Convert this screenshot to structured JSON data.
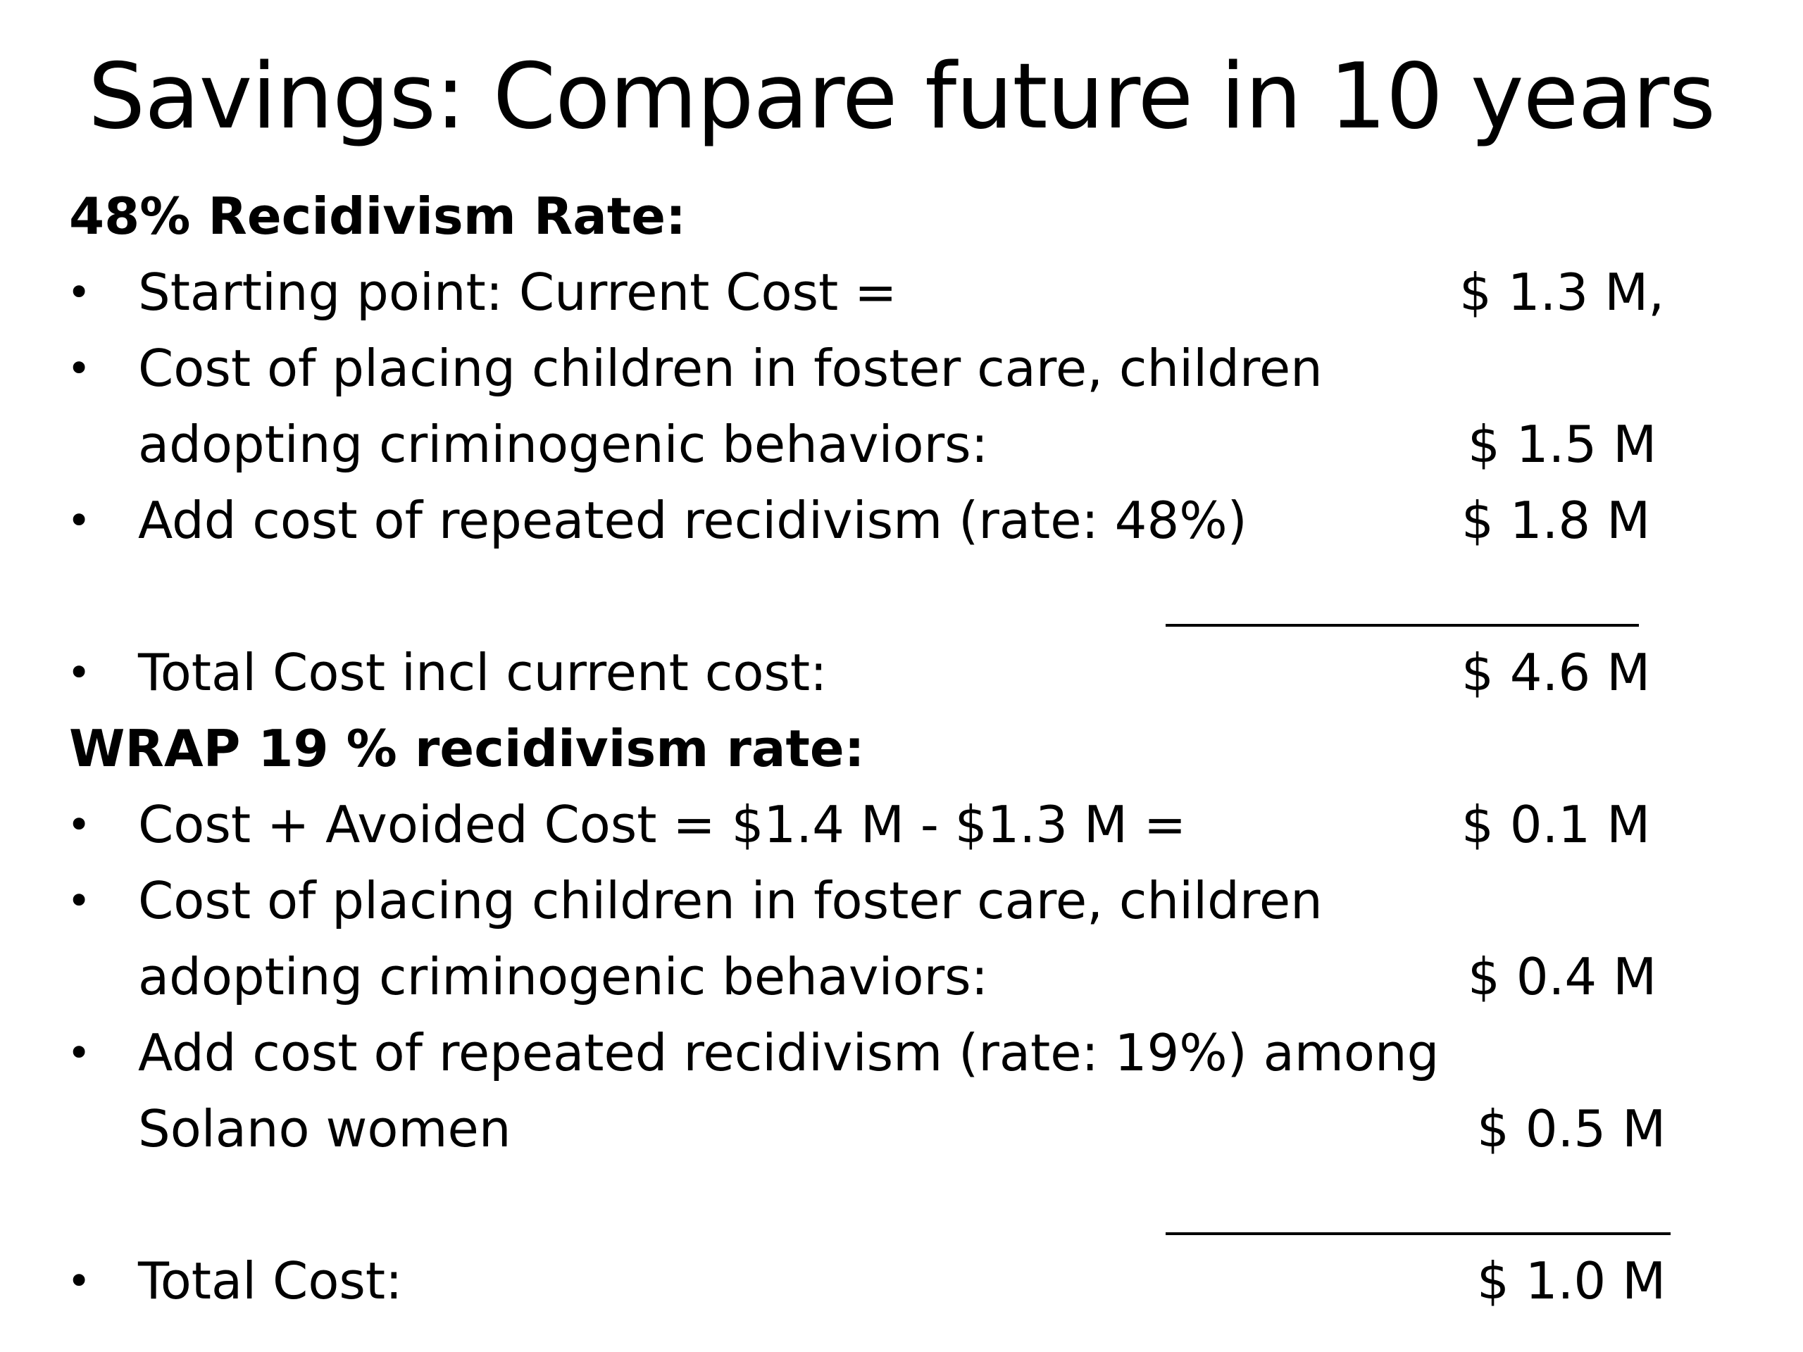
{
  "title": "Savings: Compare future in 10 years",
  "section_current": {
    "heading": "48% Recidivism Rate:",
    "items": [
      {
        "lines": [
          "Starting point: Current Cost ="
        ],
        "amount": "$ 1.3 M,"
      },
      {
        "lines": [
          "Cost of placing children in foster care, children",
          "adopting criminogenic behaviors:"
        ],
        "amount": "$ 1.5 M"
      },
      {
        "lines": [
          "Add cost of repeated recidivism (rate: 48%)"
        ],
        "amount": "$ 1.8 M"
      }
    ],
    "total": {
      "label": "Total Cost incl current cost:",
      "amount": "$ 4.6 M"
    }
  },
  "section_wrap": {
    "heading": "WRAP 19 % recidivism rate:",
    "items": [
      {
        "lines": [
          "Cost + Avoided Cost = $1.4 M - $1.3 M ="
        ],
        "amount": "$ 0.1 M"
      },
      {
        "lines": [
          "Cost of placing children in foster care, children",
          "adopting criminogenic behaviors:"
        ],
        "amount": "$ 0.4 M"
      },
      {
        "lines": [
          "Add cost of repeated recidivism (rate: 19%) among",
          "Solano women"
        ],
        "amount": "$ 0.5 M"
      }
    ],
    "total": {
      "label": "Total Cost:",
      "amount": "$ 1.0 M"
    }
  },
  "bullet_char": "•"
}
